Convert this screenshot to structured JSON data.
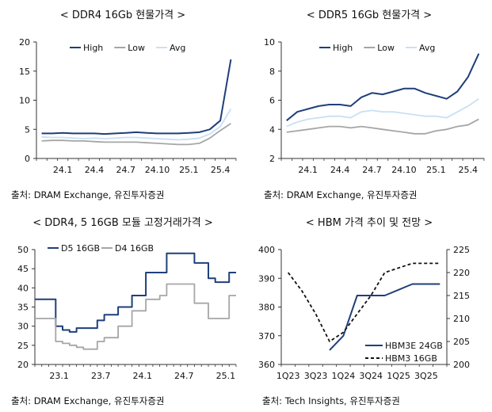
{
  "charts": [
    {
      "title": "< DDR4 16Gb 현물가격 >",
      "source": "출처: DRAM Exchange, 유진투자증권",
      "chart_data": {
        "type": "line",
        "ylim": [
          0,
          20
        ],
        "yticks": [
          "0",
          "5",
          "10",
          "15",
          "20"
        ],
        "xticks": [
          "24.1",
          "24.4",
          "24.7",
          "24.10",
          "25.1",
          "25.4"
        ],
        "x": [
          "23.11",
          "23.12",
          "24.1",
          "24.2",
          "24.3",
          "24.4",
          "24.5",
          "24.6",
          "24.7",
          "24.8",
          "24.9",
          "24.10",
          "24.11",
          "24.12",
          "25.1",
          "25.2",
          "25.3",
          "25.4",
          "25.5"
        ],
        "legend": "top",
        "series": [
          {
            "name": "High",
            "color": "#1f3f7a",
            "values": [
              4.3,
              4.3,
              4.4,
              4.3,
              4.3,
              4.3,
              4.2,
              4.3,
              4.4,
              4.5,
              4.4,
              4.3,
              4.3,
              4.3,
              4.4,
              4.5,
              5.0,
              6.5,
              17.0
            ]
          },
          {
            "name": "Low",
            "color": "#a6a6a6",
            "values": [
              3.0,
              3.1,
              3.1,
              3.0,
              3.0,
              2.9,
              2.8,
              2.8,
              2.8,
              2.8,
              2.7,
              2.6,
              2.5,
              2.4,
              2.4,
              2.6,
              3.5,
              4.8,
              6.0
            ]
          },
          {
            "name": "Avg",
            "color": "#c9e0f4",
            "values": [
              3.7,
              3.6,
              3.6,
              3.5,
              3.4,
              3.5,
              3.4,
              3.5,
              3.6,
              3.6,
              3.5,
              3.4,
              3.3,
              3.2,
              3.3,
              3.5,
              4.2,
              5.5,
              8.5
            ]
          }
        ]
      }
    },
    {
      "title": "< DDR5 16Gb 현물가격 >",
      "source": "출처: DRAM Exchange, 유진투자증권",
      "chart_data": {
        "type": "line",
        "ylim": [
          2,
          10
        ],
        "yticks": [
          "2",
          "4",
          "6",
          "8",
          "10"
        ],
        "xticks": [
          "24.1",
          "24.4",
          "24.7",
          "24.10",
          "25.1",
          "25.4"
        ],
        "x": [
          "23.11",
          "23.12",
          "24.1",
          "24.2",
          "24.3",
          "24.4",
          "24.5",
          "24.6",
          "24.7",
          "24.8",
          "24.9",
          "24.10",
          "24.11",
          "24.12",
          "25.1",
          "25.2",
          "25.3",
          "25.4",
          "25.5"
        ],
        "legend": "top",
        "series": [
          {
            "name": "High",
            "color": "#1f3f7a",
            "values": [
              4.6,
              5.2,
              5.4,
              5.6,
              5.7,
              5.7,
              5.6,
              6.2,
              6.5,
              6.4,
              6.6,
              6.8,
              6.8,
              6.5,
              6.3,
              6.1,
              6.6,
              7.6,
              9.2
            ]
          },
          {
            "name": "Low",
            "color": "#a6a6a6",
            "values": [
              3.8,
              3.9,
              4.0,
              4.1,
              4.2,
              4.2,
              4.1,
              4.2,
              4.1,
              4.0,
              3.9,
              3.8,
              3.7,
              3.7,
              3.9,
              4.0,
              4.2,
              4.3,
              4.7
            ]
          },
          {
            "name": "Avg",
            "color": "#c9e0f4",
            "values": [
              4.2,
              4.5,
              4.7,
              4.8,
              4.9,
              4.9,
              4.8,
              5.2,
              5.3,
              5.2,
              5.2,
              5.1,
              5.0,
              4.9,
              4.9,
              4.8,
              5.2,
              5.6,
              6.1
            ]
          }
        ]
      }
    },
    {
      "title": "< DDR4, 5 16GB 모듈 고정거래가격 >",
      "source": "출처: DRAM Exchange, 유진투자증권",
      "chart_data": {
        "type": "line",
        "step": true,
        "ylim": [
          20,
          50
        ],
        "yticks": [
          "20",
          "25",
          "30",
          "35",
          "40",
          "45",
          "50"
        ],
        "xticks": [
          "23.1",
          "23.7",
          "24.1",
          "24.7",
          "25.1"
        ],
        "x": [
          "22.10",
          "22.11",
          "22.12",
          "23.1",
          "23.2",
          "23.3",
          "23.4",
          "23.5",
          "23.6",
          "23.7",
          "23.8",
          "23.9",
          "23.10",
          "23.11",
          "23.12",
          "24.1",
          "24.2",
          "24.3",
          "24.4",
          "24.5",
          "24.6",
          "24.7",
          "24.8",
          "24.9",
          "24.10",
          "24.11",
          "24.12",
          "25.1",
          "25.2"
        ],
        "legend": "top-left",
        "series": [
          {
            "name": "D5 16GB",
            "color": "#1f3f7a",
            "values": [
              37,
              37,
              37,
              30,
              29,
              28.5,
              29.5,
              29.5,
              29.5,
              31.5,
              33,
              33,
              35,
              35,
              38,
              38,
              44,
              44,
              44,
              49,
              49,
              49,
              49,
              46.5,
              46.5,
              42.5,
              41.5,
              41.5,
              44
            ]
          },
          {
            "name": "D4 16GB",
            "color": "#a6a6a6",
            "values": [
              32,
              32,
              32,
              26,
              25.5,
              25,
              24.5,
              24,
              24,
              26,
              27,
              27,
              30,
              30,
              34,
              34,
              37,
              37,
              38,
              41,
              41,
              41,
              41,
              36,
              36,
              32,
              32,
              32,
              38
            ]
          }
        ]
      }
    },
    {
      "title": "< HBM 가격 추이 및 전망 >",
      "source": "출처: Tech Insights, 유진투자증권",
      "chart_data": {
        "type": "line",
        "ylim": [
          360,
          400
        ],
        "yticks": [
          "360",
          "370",
          "380",
          "390",
          "400"
        ],
        "y2lim": [
          200,
          225
        ],
        "y2ticks": [
          "200",
          "205",
          "210",
          "215",
          "220",
          "225"
        ],
        "xticks": [
          "1Q23",
          "3Q23",
          "1Q24",
          "3Q24",
          "1Q25",
          "3Q25"
        ],
        "x": [
          "1Q23",
          "2Q23",
          "3Q23",
          "4Q23",
          "1Q24",
          "2Q24",
          "3Q24",
          "4Q24",
          "1Q25",
          "2Q25",
          "3Q25",
          "4Q25"
        ],
        "legend": "bottom-right",
        "series": [
          {
            "name": "HBM3E 24GB",
            "axis": "left",
            "color": "#1f3f7a",
            "values": [
              null,
              null,
              null,
              365,
              370,
              384,
              384,
              384,
              386,
              388,
              388,
              388
            ]
          },
          {
            "name": "HBM3 16GB",
            "axis": "right",
            "color": "#111111",
            "dash": "4,3",
            "values": [
              220,
              216,
              211,
              205,
              207,
              211,
              215,
              220,
              221,
              222,
              222,
              222
            ]
          }
        ]
      }
    }
  ]
}
